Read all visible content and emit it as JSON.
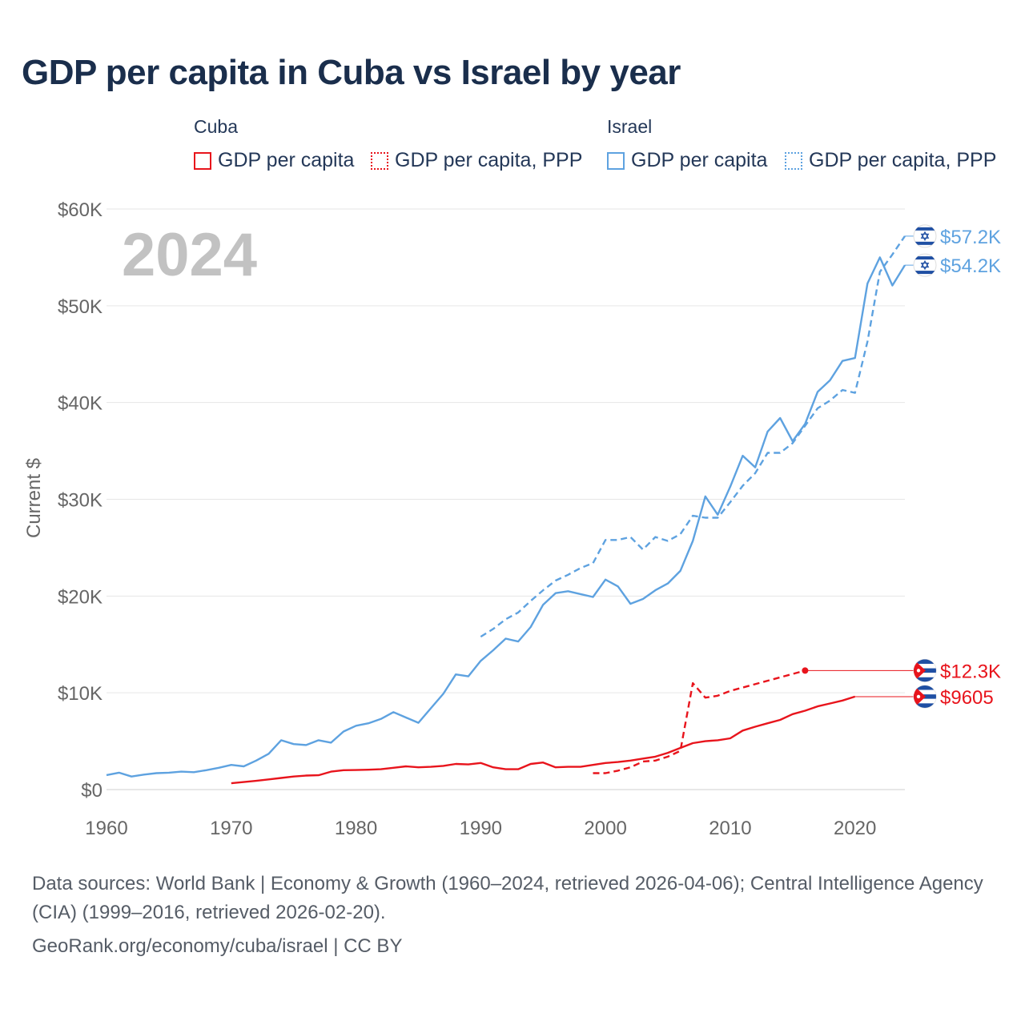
{
  "title": "GDP per capita in Cuba vs Israel by year",
  "legend": {
    "cuba_group": "Cuba",
    "israel_group": "Israel",
    "cuba_gdp": "GDP per capita",
    "cuba_ppp": "GDP per capita, PPP",
    "israel_gdp": "GDP per capita",
    "israel_ppp": "GDP per capita, PPP"
  },
  "footer": {
    "sources": "Data sources: World Bank | Economy & Growth (1960–2024, retrieved 2026-04-06); Central Intelligence Agency (CIA) (1999–2016, retrieved 2026-02-20).",
    "credit": "GeoRank.org/economy/cuba/israel | CC BY"
  },
  "colors": {
    "cuba": "#e8141c",
    "israel": "#5ea2e0"
  },
  "chart_data": {
    "type": "line",
    "title": "GDP per capita in Cuba vs Israel by year",
    "ylabel": "Current $",
    "xlabel": "",
    "year_label": "2024",
    "xlim": [
      1960,
      2024
    ],
    "ylim": [
      0,
      60000
    ],
    "x_ticks": [
      1960,
      1970,
      1980,
      1990,
      2000,
      2010,
      2020
    ],
    "y_ticks": [
      0,
      10000,
      20000,
      30000,
      40000,
      50000,
      60000
    ],
    "y_tick_labels": [
      "$0",
      "$10K",
      "$20K",
      "$30K",
      "$40K",
      "$50K",
      "$60K"
    ],
    "series": [
      {
        "name": "Israel GDP per capita",
        "country": "Israel",
        "style": "solid",
        "color": "#5ea2e0",
        "end_label": "$54.2K",
        "end_value": 54200,
        "points": [
          [
            1960,
            1500
          ],
          [
            1961,
            1750
          ],
          [
            1962,
            1350
          ],
          [
            1963,
            1550
          ],
          [
            1964,
            1700
          ],
          [
            1965,
            1750
          ],
          [
            1966,
            1850
          ],
          [
            1967,
            1800
          ],
          [
            1968,
            2000
          ],
          [
            1969,
            2250
          ],
          [
            1970,
            2550
          ],
          [
            1971,
            2400
          ],
          [
            1972,
            3000
          ],
          [
            1973,
            3700
          ],
          [
            1974,
            5100
          ],
          [
            1975,
            4700
          ],
          [
            1976,
            4600
          ],
          [
            1977,
            5100
          ],
          [
            1978,
            4850
          ],
          [
            1979,
            6000
          ],
          [
            1980,
            6600
          ],
          [
            1981,
            6850
          ],
          [
            1982,
            7300
          ],
          [
            1983,
            8000
          ],
          [
            1984,
            7450
          ],
          [
            1985,
            6900
          ],
          [
            1986,
            8400
          ],
          [
            1987,
            9900
          ],
          [
            1988,
            11900
          ],
          [
            1989,
            11700
          ],
          [
            1990,
            13300
          ],
          [
            1991,
            14400
          ],
          [
            1992,
            15600
          ],
          [
            1993,
            15300
          ],
          [
            1994,
            16800
          ],
          [
            1995,
            19100
          ],
          [
            1996,
            20300
          ],
          [
            1997,
            20500
          ],
          [
            1998,
            20200
          ],
          [
            1999,
            19900
          ],
          [
            2000,
            21700
          ],
          [
            2001,
            21000
          ],
          [
            2002,
            19200
          ],
          [
            2003,
            19700
          ],
          [
            2004,
            20600
          ],
          [
            2005,
            21300
          ],
          [
            2006,
            22600
          ],
          [
            2007,
            25700
          ],
          [
            2008,
            30300
          ],
          [
            2009,
            28400
          ],
          [
            2010,
            31300
          ],
          [
            2011,
            34500
          ],
          [
            2012,
            33300
          ],
          [
            2013,
            37000
          ],
          [
            2014,
            38400
          ],
          [
            2015,
            36000
          ],
          [
            2016,
            37800
          ],
          [
            2017,
            41100
          ],
          [
            2018,
            42300
          ],
          [
            2019,
            44300
          ],
          [
            2020,
            44600
          ],
          [
            2021,
            52300
          ],
          [
            2022,
            55000
          ],
          [
            2023,
            52100
          ],
          [
            2024,
            54200
          ]
        ]
      },
      {
        "name": "Israel GDP per capita, PPP",
        "country": "Israel",
        "style": "dashed",
        "color": "#5ea2e0",
        "end_label": "$57.2K",
        "end_value": 57200,
        "points": [
          [
            1990,
            15800
          ],
          [
            1991,
            16600
          ],
          [
            1992,
            17600
          ],
          [
            1993,
            18300
          ],
          [
            1994,
            19500
          ],
          [
            1995,
            20600
          ],
          [
            1996,
            21600
          ],
          [
            1997,
            22200
          ],
          [
            1998,
            22900
          ],
          [
            1999,
            23400
          ],
          [
            2000,
            25800
          ],
          [
            2001,
            25800
          ],
          [
            2002,
            26100
          ],
          [
            2003,
            24800
          ],
          [
            2004,
            26100
          ],
          [
            2005,
            25700
          ],
          [
            2006,
            26400
          ],
          [
            2007,
            28300
          ],
          [
            2008,
            28100
          ],
          [
            2009,
            28100
          ],
          [
            2010,
            29700
          ],
          [
            2011,
            31400
          ],
          [
            2012,
            32700
          ],
          [
            2013,
            34800
          ],
          [
            2014,
            34800
          ],
          [
            2015,
            35800
          ],
          [
            2016,
            37600
          ],
          [
            2017,
            39400
          ],
          [
            2018,
            40200
          ],
          [
            2019,
            41300
          ],
          [
            2020,
            41000
          ],
          [
            2021,
            46300
          ],
          [
            2022,
            53500
          ],
          [
            2023,
            55300
          ],
          [
            2024,
            57200
          ]
        ]
      },
      {
        "name": "Cuba GDP per capita",
        "country": "Cuba",
        "style": "solid",
        "color": "#e8141c",
        "end_label": "$9605",
        "end_value": 9605,
        "points": [
          [
            1970,
            650
          ],
          [
            1971,
            780
          ],
          [
            1972,
            900
          ],
          [
            1973,
            1050
          ],
          [
            1974,
            1200
          ],
          [
            1975,
            1350
          ],
          [
            1976,
            1450
          ],
          [
            1977,
            1480
          ],
          [
            1978,
            1850
          ],
          [
            1979,
            2000
          ],
          [
            1980,
            2020
          ],
          [
            1981,
            2050
          ],
          [
            1982,
            2100
          ],
          [
            1983,
            2250
          ],
          [
            1984,
            2400
          ],
          [
            1985,
            2300
          ],
          [
            1986,
            2350
          ],
          [
            1987,
            2450
          ],
          [
            1988,
            2650
          ],
          [
            1989,
            2600
          ],
          [
            1990,
            2750
          ],
          [
            1991,
            2300
          ],
          [
            1992,
            2100
          ],
          [
            1993,
            2100
          ],
          [
            1994,
            2650
          ],
          [
            1995,
            2800
          ],
          [
            1996,
            2300
          ],
          [
            1997,
            2350
          ],
          [
            1998,
            2350
          ],
          [
            1999,
            2550
          ],
          [
            2000,
            2750
          ],
          [
            2001,
            2850
          ],
          [
            2002,
            3000
          ],
          [
            2003,
            3200
          ],
          [
            2004,
            3400
          ],
          [
            2005,
            3800
          ],
          [
            2006,
            4300
          ],
          [
            2007,
            4800
          ],
          [
            2008,
            5000
          ],
          [
            2009,
            5100
          ],
          [
            2010,
            5300
          ],
          [
            2011,
            6100
          ],
          [
            2012,
            6500
          ],
          [
            2013,
            6850
          ],
          [
            2014,
            7200
          ],
          [
            2015,
            7800
          ],
          [
            2016,
            8150
          ],
          [
            2017,
            8600
          ],
          [
            2018,
            8900
          ],
          [
            2019,
            9200
          ],
          [
            2020,
            9605
          ]
        ]
      },
      {
        "name": "Cuba GDP per capita, PPP",
        "country": "Cuba",
        "style": "dashed",
        "color": "#e8141c",
        "end_label": "$12.3K",
        "end_value": 12300,
        "points": [
          [
            1999,
            1700
          ],
          [
            2000,
            1700
          ],
          [
            2001,
            1950
          ],
          [
            2002,
            2300
          ],
          [
            2003,
            2900
          ],
          [
            2004,
            3000
          ],
          [
            2005,
            3400
          ],
          [
            2006,
            4000
          ],
          [
            2007,
            11000
          ],
          [
            2008,
            9500
          ],
          [
            2009,
            9700
          ],
          [
            2010,
            10200
          ],
          [
            2016,
            12300
          ]
        ]
      }
    ]
  }
}
